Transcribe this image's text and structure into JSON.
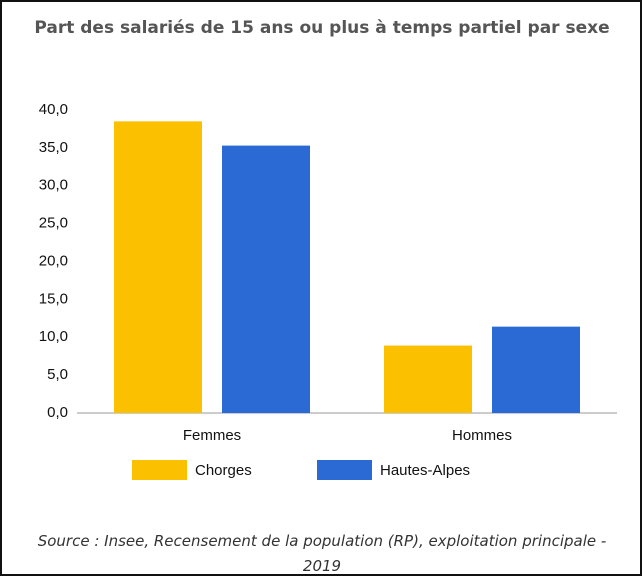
{
  "chart_data": {
    "type": "bar",
    "title": "Part des salariés de 15 ans ou plus à temps partiel par sexe",
    "categories": [
      "Femmes",
      "Hommes"
    ],
    "series": [
      {
        "name": "Chorges",
        "color": "#fbc000",
        "values": [
          38.5,
          8.9
        ]
      },
      {
        "name": "Hautes-Alpes",
        "color": "#2b6ad4",
        "values": [
          35.3,
          11.4
        ]
      }
    ],
    "ylim": [
      0,
      40
    ],
    "yticks": [
      {
        "value": 0,
        "label": "0,0"
      },
      {
        "value": 5,
        "label": "5,0"
      },
      {
        "value": 10,
        "label": "10,0"
      },
      {
        "value": 15,
        "label": "15,0"
      },
      {
        "value": 20,
        "label": "20,0"
      },
      {
        "value": 25,
        "label": "25,0"
      },
      {
        "value": 30,
        "label": "30,0"
      },
      {
        "value": 35,
        "label": "35,0"
      },
      {
        "value": 40,
        "label": "40,0"
      }
    ],
    "grid": false,
    "legend": "bottom",
    "source": "Source : Insee, Recensement de la population (RP), exploitation principale - 2019"
  }
}
